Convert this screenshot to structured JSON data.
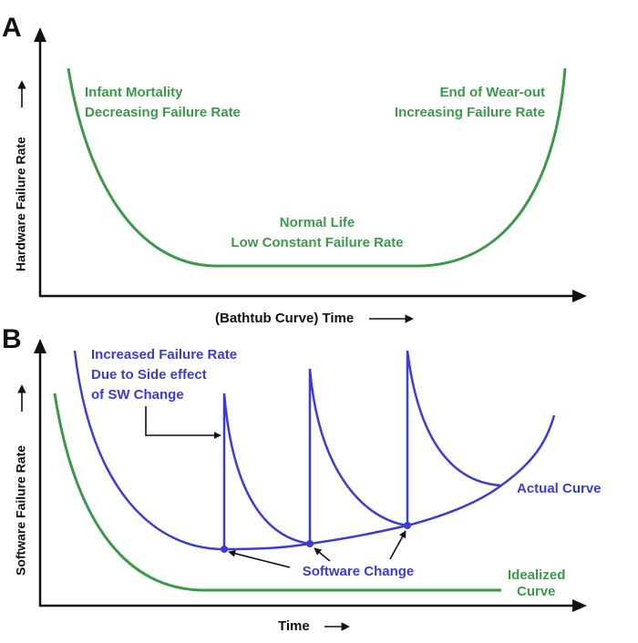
{
  "panel_a": {
    "label": "A",
    "y_axis": "Hardware Failure Rate",
    "x_axis": "(Bathtub Curve) Time",
    "left_note": [
      "Infant Mortality",
      "Decreasing Failure Rate"
    ],
    "right_note": [
      "End of Wear-out",
      "Increasing Failure Rate"
    ],
    "middle_note": [
      "Normal Life",
      "Low Constant Failure Rate"
    ]
  },
  "panel_b": {
    "label": "B",
    "y_axis": "Software Failure Rate",
    "x_axis": "Time",
    "spike_note": [
      "Increased Failure Rate",
      "Due to Side effect",
      "of SW Change"
    ],
    "actual_curve": "Actual Curve",
    "software_change": "Software Change",
    "idealized_curve": [
      "Idealized",
      "Curve"
    ]
  }
}
